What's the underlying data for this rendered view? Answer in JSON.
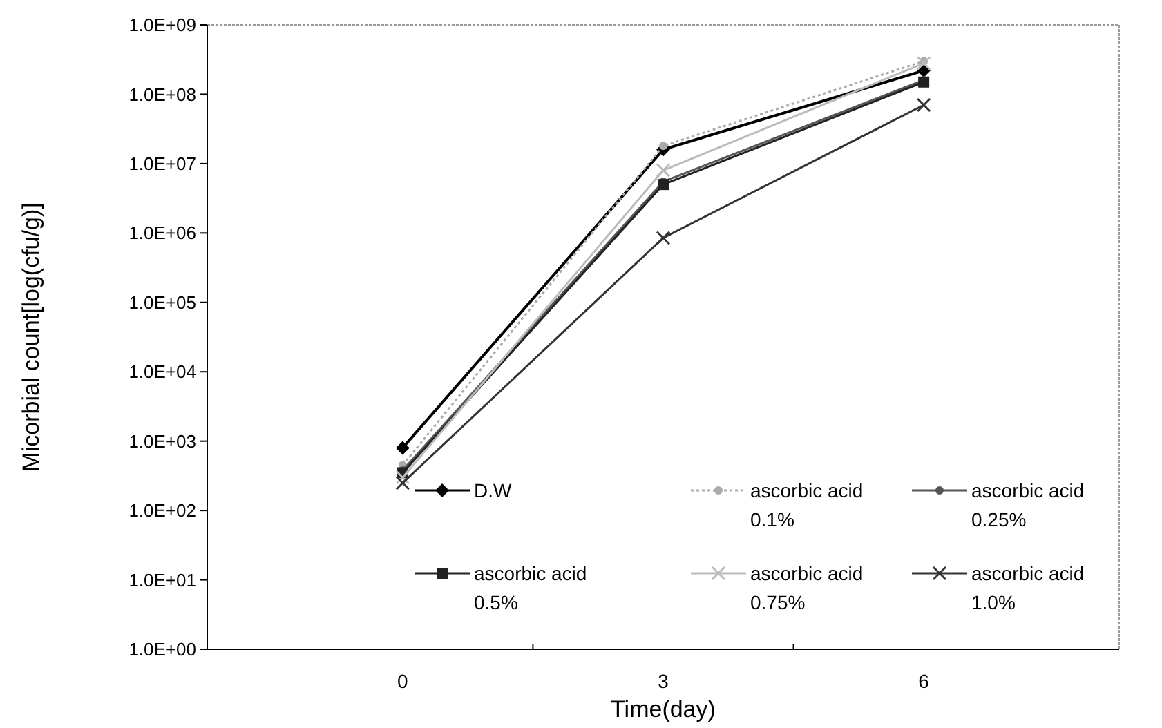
{
  "chart_data": {
    "type": "line",
    "xlabel": "Time(day)",
    "ylabel": "Micorbial count[log(cfu/g)]",
    "categories": [
      "0",
      "3",
      "6"
    ],
    "log": true,
    "ylim": [
      1,
      1000000000
    ],
    "yticks": [
      {
        "value": 1,
        "label": "1.0E+00"
      },
      {
        "value": 10,
        "label": "1.0E+01"
      },
      {
        "value": 100,
        "label": "1.0E+02"
      },
      {
        "value": 1000,
        "label": "1.0E+03"
      },
      {
        "value": 10000,
        "label": "1.0E+04"
      },
      {
        "value": 100000,
        "label": "1.0E+05"
      },
      {
        "value": 1000000,
        "label": "1.0E+06"
      },
      {
        "value": 10000000,
        "label": "1.0E+07"
      },
      {
        "value": 100000000,
        "label": "1.0E+08"
      },
      {
        "value": 1000000000,
        "label": "1.0E+09"
      }
    ],
    "grid": false,
    "legend": "bottom",
    "series": [
      {
        "name": "D.W",
        "color": "#000000",
        "marker": "diamond",
        "line_style": "solid",
        "values": [
          800,
          16000000,
          220000000
        ]
      },
      {
        "name": "ascorbic acid 0.1%",
        "color": "#aaaaaa",
        "marker": "circle",
        "line_style": "dotted",
        "values": [
          450,
          18000000,
          300000000
        ]
      },
      {
        "name": "ascorbic acid 0.25%",
        "color": "#555555",
        "marker": "circle",
        "line_style": "solid",
        "values": [
          380,
          5500000,
          160000000
        ]
      },
      {
        "name": "ascorbic acid 0.5%",
        "color": "#222222",
        "marker": "square",
        "line_style": "solid",
        "values": [
          350,
          5000000,
          150000000
        ]
      },
      {
        "name": "ascorbic acid 0.75%",
        "color": "#bbbbbb",
        "marker": "cross",
        "line_style": "solid",
        "values": [
          300,
          8000000,
          280000000
        ]
      },
      {
        "name": "ascorbic acid 1.0%",
        "color": "#333333",
        "marker": "cross",
        "line_style": "solid",
        "values": [
          250,
          850000,
          70000000
        ]
      }
    ]
  }
}
